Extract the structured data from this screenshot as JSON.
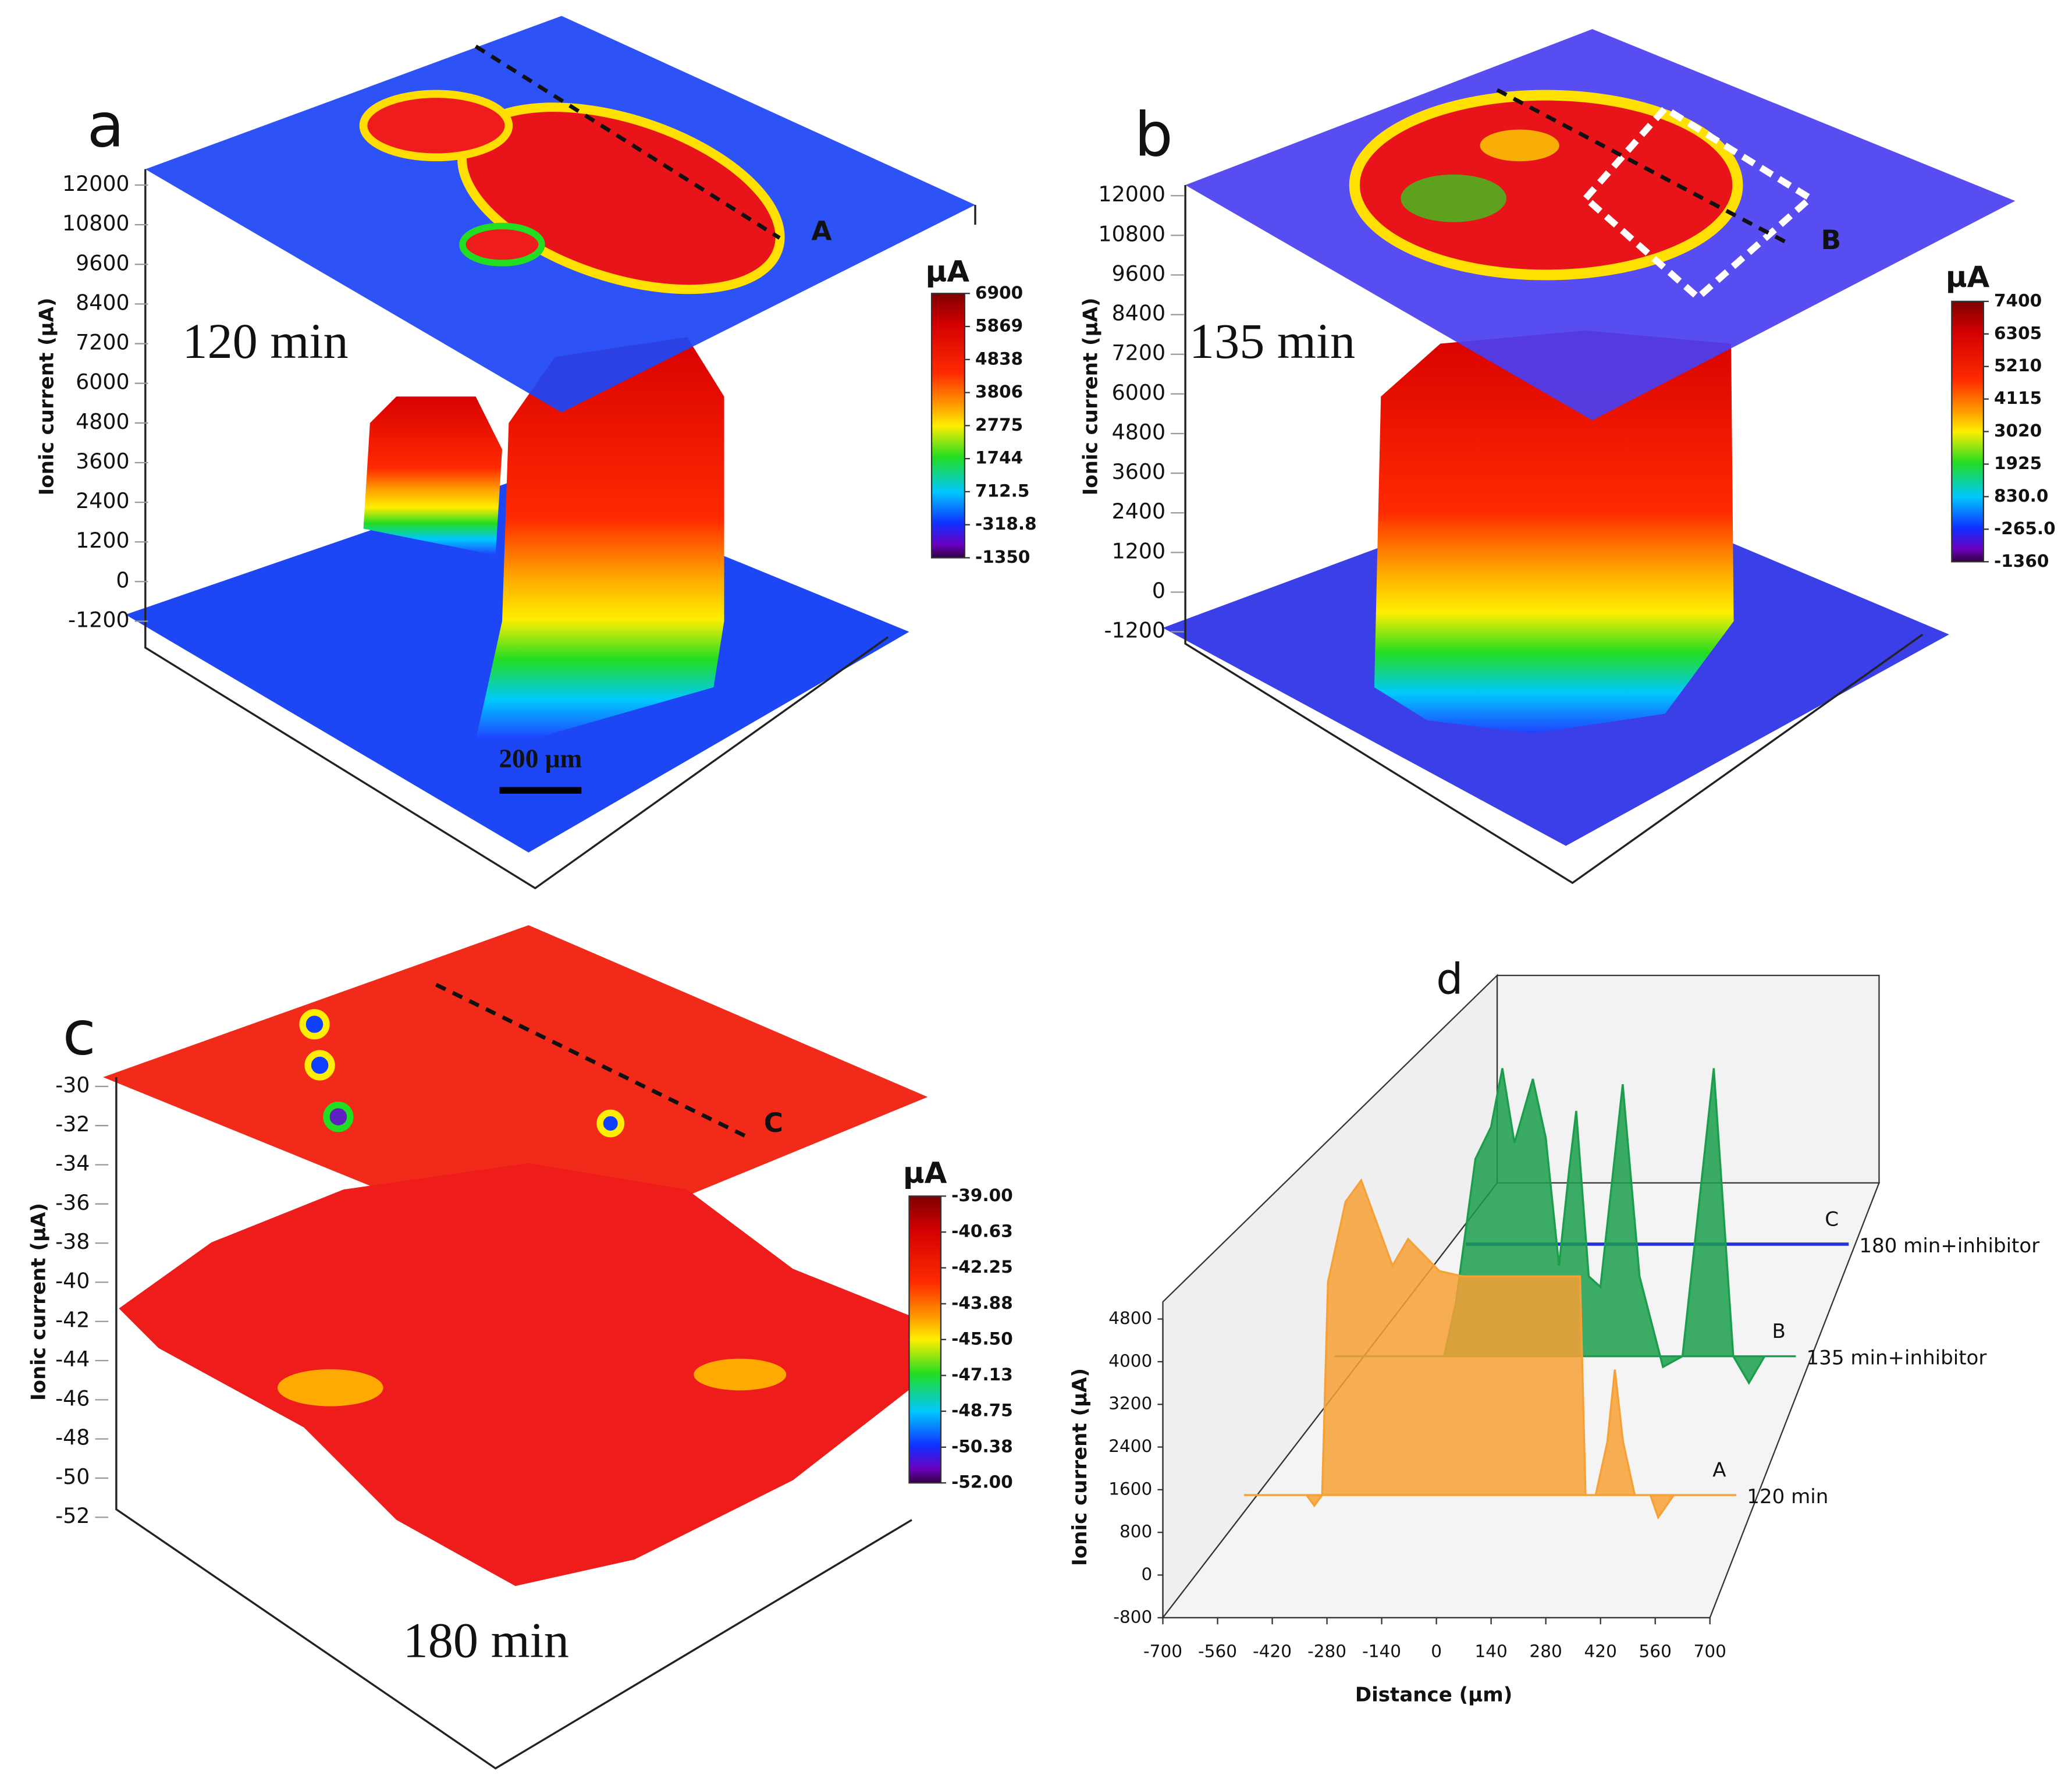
{
  "chart_data": [
    {
      "type": "surface",
      "panel_label": "a",
      "time_label": "120 min",
      "z_label": "Ionic current (μA)",
      "zlim": [
        -1200,
        12000
      ],
      "zticks": [
        -1200,
        0,
        1200,
        2400,
        3600,
        4800,
        6000,
        7200,
        8400,
        9600,
        10800,
        12000
      ],
      "colorbar_title": "μA",
      "colorbar_lim": [
        -1350,
        6900
      ],
      "colorbar_ticks": [
        6900,
        5869,
        4838,
        3806,
        2775,
        1744,
        712.5,
        -318.8,
        -1350
      ],
      "line_label": "A",
      "scale_bar": "200 μm"
    },
    {
      "type": "surface",
      "panel_label": "b",
      "time_label": "135 min",
      "z_label": "Ionic current (μA)",
      "zlim": [
        -1200,
        12000
      ],
      "zticks": [
        -1200,
        0,
        1200,
        2400,
        3600,
        4800,
        6000,
        7200,
        8400,
        9600,
        10800,
        12000
      ],
      "colorbar_title": "μA",
      "colorbar_lim": [
        -1360,
        7400
      ],
      "colorbar_ticks": [
        7400,
        6305,
        5210,
        4115,
        3020,
        1925,
        {
          "value": 830,
          "label": "830.0"
        },
        {
          "value": -265,
          "label": "-265.0"
        },
        -1360
      ],
      "line_label": "B"
    },
    {
      "type": "surface",
      "panel_label": "c",
      "time_label": "180 min",
      "z_label": "Ionic current (μA)",
      "zlim": [
        -52,
        -30
      ],
      "zticks": [
        -52,
        -50,
        -48,
        -46,
        -44,
        -42,
        -40,
        -38,
        -36,
        -34,
        -32,
        -30
      ],
      "colorbar_title": "μA",
      "colorbar_lim": [
        -52,
        -39
      ],
      "colorbar_ticks": [
        {
          "value": -39,
          "label": "-39.00"
        },
        -40.63,
        -42.25,
        -43.88,
        {
          "value": -45.5,
          "label": "-45.50"
        },
        -47.13,
        -48.75,
        -50.38,
        {
          "value": -52,
          "label": "-52.00"
        }
      ],
      "line_label": "C"
    },
    {
      "type": "area3d",
      "panel_label": "d",
      "x_label": "Distance (μm)",
      "y_label": "Ionic current (μA)",
      "xlim": [
        -700,
        700
      ],
      "xticks": [
        -700,
        -560,
        -420,
        -280,
        -140,
        0,
        140,
        280,
        420,
        560,
        700
      ],
      "ylim": [
        -800,
        4800
      ],
      "yticks": [
        -800,
        0,
        800,
        1600,
        2400,
        3200,
        4000,
        4800
      ],
      "series": [
        {
          "name": "120 min",
          "label": "A",
          "color": "#f7a035",
          "fill": true,
          "x": [
            -560,
            -400,
            -380,
            -360,
            -345,
            -300,
            -260,
            -220,
            -180,
            -140,
            -100,
            -60,
            0,
            100,
            200,
            300,
            314,
            340,
            370,
            389,
            410,
            440,
            480,
            500,
            540,
            600,
            700
          ],
          "values": [
            1500,
            1500,
            1300,
            1500,
            5500,
            7000,
            7400,
            6600,
            5800,
            6300,
            6000,
            5700,
            5600,
            5600,
            5600,
            5600,
            1500,
            1500,
            2500,
            3850,
            2500,
            1500,
            1500,
            1080,
            1500,
            1500,
            1500
          ]
        },
        {
          "name": "135 min+inhibitor",
          "label": "B",
          "color": "#1a9e4b",
          "fill": true,
          "x": [
            -480,
            -200,
            -170,
            -120,
            -80,
            -51,
            -20,
            27,
            60,
            94,
            120,
            138,
            170,
            200,
            257,
            300,
            360,
            410,
            490,
            540,
            580,
            620,
            700
          ],
          "values": [
            1500,
            1500,
            2500,
            5200,
            5800,
            6900,
            5500,
            6700,
            5600,
            3200,
            5000,
            6100,
            3000,
            2800,
            6600,
            3000,
            1300,
            1500,
            6900,
            1500,
            1000,
            1500,
            1500
          ]
        },
        {
          "name": "180 min+inhibitor",
          "label": "C",
          "color": "#2233dd",
          "fill": false,
          "x": [
            -280,
            700
          ],
          "values": [
            1000,
            1000
          ]
        }
      ]
    }
  ]
}
